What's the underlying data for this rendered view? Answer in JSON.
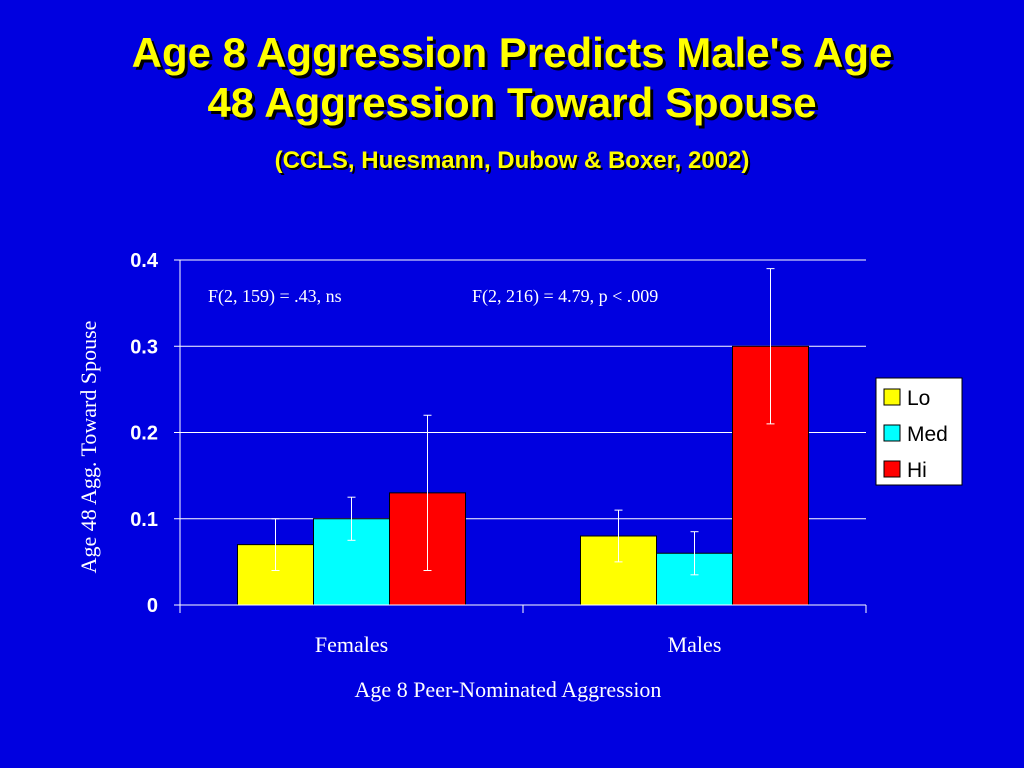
{
  "title_line1": "Age 8 Aggression Predicts Male's Age",
  "title_line2": "48 Aggression Toward Spouse",
  "subtitle": "(CCLS, Huesmann, Dubow & Boxer, 2002)",
  "colors": {
    "background": "#0000e0",
    "title": "#ffff00",
    "text": "#ffffff"
  },
  "chart_data": {
    "type": "bar",
    "categories": [
      "Females",
      "Males"
    ],
    "series": [
      {
        "name": "Lo",
        "color": "#ffff00",
        "values": [
          0.07,
          0.08
        ],
        "error_low": [
          0.04,
          0.05
        ],
        "error_high": [
          0.1,
          0.11
        ]
      },
      {
        "name": "Med",
        "color": "#00ffff",
        "values": [
          0.1,
          0.06
        ],
        "error_low": [
          0.075,
          0.035
        ],
        "error_high": [
          0.125,
          0.085
        ]
      },
      {
        "name": "Hi",
        "color": "#ff0000",
        "values": [
          0.13,
          0.3
        ],
        "error_low": [
          0.04,
          0.21
        ],
        "error_high": [
          0.22,
          0.39
        ]
      }
    ],
    "ylim": [
      0,
      0.4
    ],
    "yticks": [
      "0",
      "0.1",
      "0.2",
      "0.3",
      "0.4"
    ],
    "ytick_values": [
      0,
      0.1,
      0.2,
      0.3,
      0.4
    ],
    "xlabel": "Age 8 Peer-Nominated Aggression",
    "ylabel": "Age 48 Agg. Toward Spouse",
    "annotations": [
      "F(2, 159) = .43, ns",
      "F(2, 216) = 4.79, p < .009"
    ],
    "grid": true,
    "legend_position": "right"
  }
}
